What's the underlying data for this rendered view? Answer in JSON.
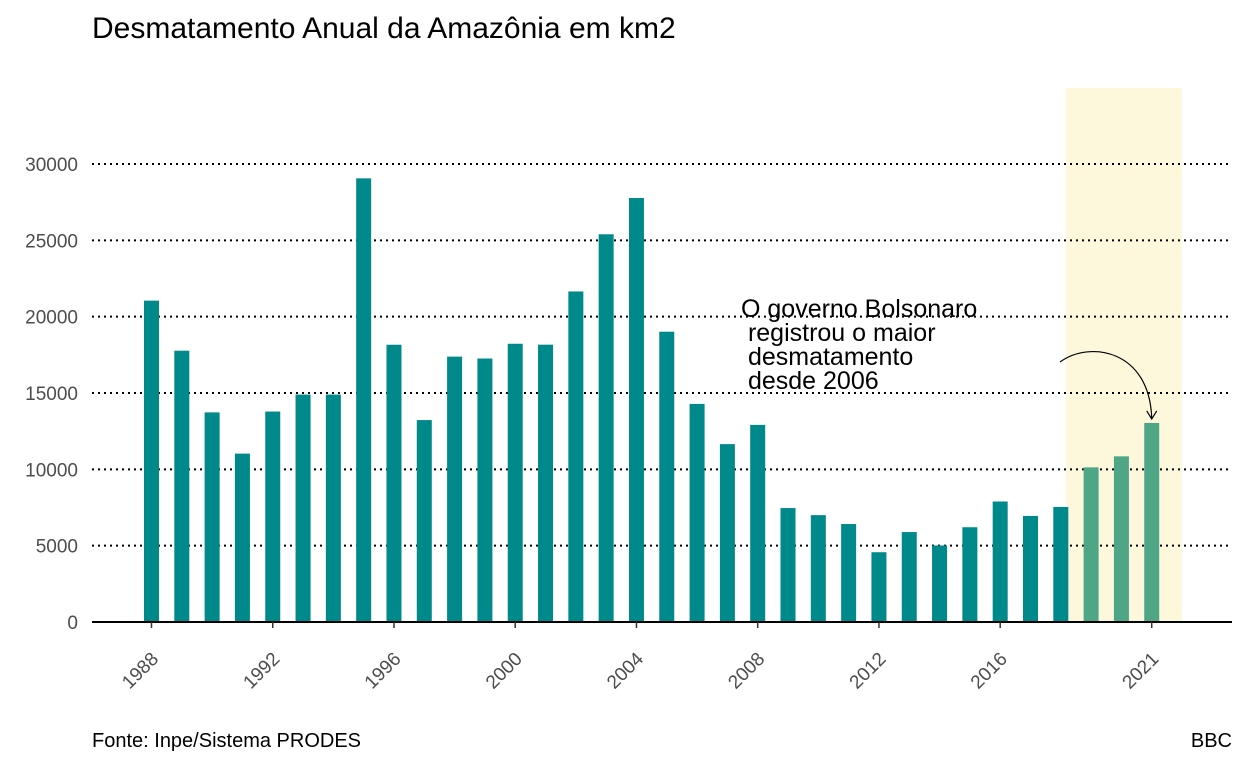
{
  "title": "Desmatamento Anual da Amazônia em km2",
  "source": "Fonte: Inpe/Sistema PRODES",
  "brand": "BBC",
  "annotation": "O governo Bolsonaro\n registrou o maior\n desmatamento\n desde 2006",
  "colors": {
    "bar": "#00898a",
    "highlight_bar": "#4ea687",
    "highlight_band": "#fdf8dc",
    "gridline": "#000000"
  },
  "chart_data": {
    "type": "bar",
    "years": [
      1988,
      1989,
      1990,
      1991,
      1992,
      1993,
      1994,
      1995,
      1996,
      1997,
      1998,
      1999,
      2000,
      2001,
      2002,
      2003,
      2004,
      2005,
      2006,
      2007,
      2008,
      2009,
      2010,
      2011,
      2012,
      2013,
      2014,
      2015,
      2016,
      2017,
      2018,
      2019,
      2020,
      2021
    ],
    "values": [
      21050,
      17770,
      13730,
      11030,
      13786,
      14896,
      14896,
      29059,
      18161,
      13227,
      17383,
      17259,
      18226,
      18165,
      21651,
      25396,
      27772,
      19014,
      14286,
      11651,
      12911,
      7464,
      7000,
      6418,
      4571,
      5891,
      5012,
      6207,
      7893,
      6947,
      7536,
      10129,
      10851,
      13038
    ],
    "highlight_years": [
      2019,
      2020,
      2021
    ],
    "x_tick_labels": [
      "1988",
      "1992",
      "1996",
      "2000",
      "2004",
      "2008",
      "2012",
      "2016",
      "2021"
    ],
    "y_tick_labels": [
      "0",
      "5000",
      "10000",
      "15000",
      "20000",
      "25000",
      "30000"
    ],
    "ylim": [
      0,
      35000
    ],
    "grid": "dotted horizontal"
  }
}
